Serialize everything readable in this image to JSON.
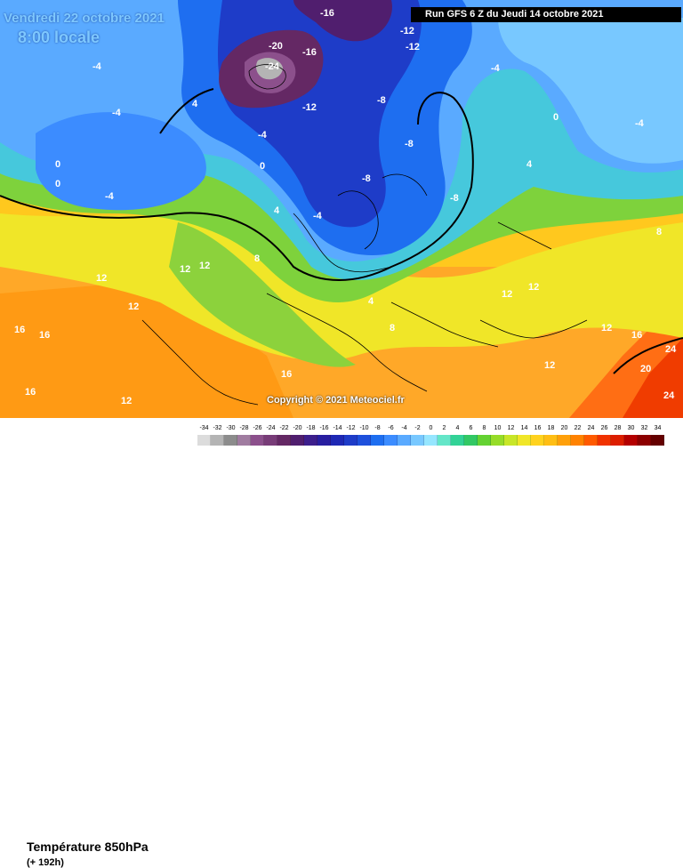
{
  "header": {
    "date": "Vendredi 22 octobre 2021",
    "time": "8:00 locale",
    "run": "Run GFS 6 Z du Jeudi 14 octobre 2021"
  },
  "footer": {
    "title": "Température 850hPa",
    "subtitle": "(+ 192h)",
    "copyright": "Copyright © 2021 Meteociel.fr"
  },
  "scale": {
    "labels": [
      "-34",
      "-32",
      "-30",
      "-28",
      "-26",
      "-24",
      "-22",
      "-20",
      "-18",
      "-16",
      "-14",
      "-12",
      "-10",
      "-8",
      "-6",
      "-4",
      "-2",
      "0",
      "2",
      "4",
      "6",
      "8",
      "10",
      "12",
      "14",
      "16",
      "18",
      "20",
      "22",
      "24",
      "26",
      "28",
      "30",
      "32",
      "34"
    ],
    "colors": [
      "#dcdcdc",
      "#b4b4b4",
      "#8c8c8c",
      "#a07ca0",
      "#8c508c",
      "#783c78",
      "#642864",
      "#501e6e",
      "#3c1e8c",
      "#281ea0",
      "#1e28b4",
      "#1e3cc8",
      "#1e50dc",
      "#1e6ef0",
      "#3c8cff",
      "#5aaaff",
      "#78c8ff",
      "#96e6ff",
      "#64e6c8",
      "#32d296",
      "#32c864",
      "#64d232",
      "#96dc28",
      "#c8e628",
      "#f0e628",
      "#ffd21e",
      "#ffbe14",
      "#ffa00a",
      "#ff8200",
      "#ff5a00",
      "#f03200",
      "#dc1e00",
      "#b40000",
      "#8c0000",
      "#640000"
    ]
  },
  "map_labels": {
    "isotherm_values": [
      "-24",
      "-20",
      "-16",
      "-16",
      "-12",
      "-12",
      "-12",
      "-8",
      "-8",
      "-8",
      "-8",
      "-4",
      "-4",
      "-4",
      "-4",
      "-4",
      "-4",
      "-4",
      "0",
      "0",
      "0",
      "0",
      "4",
      "4",
      "4",
      "4",
      "8",
      "8",
      "8",
      "12",
      "12",
      "12",
      "12",
      "12",
      "12",
      "12",
      "12",
      "12",
      "16",
      "16",
      "16",
      "16",
      "16",
      "20",
      "24",
      "24"
    ]
  }
}
